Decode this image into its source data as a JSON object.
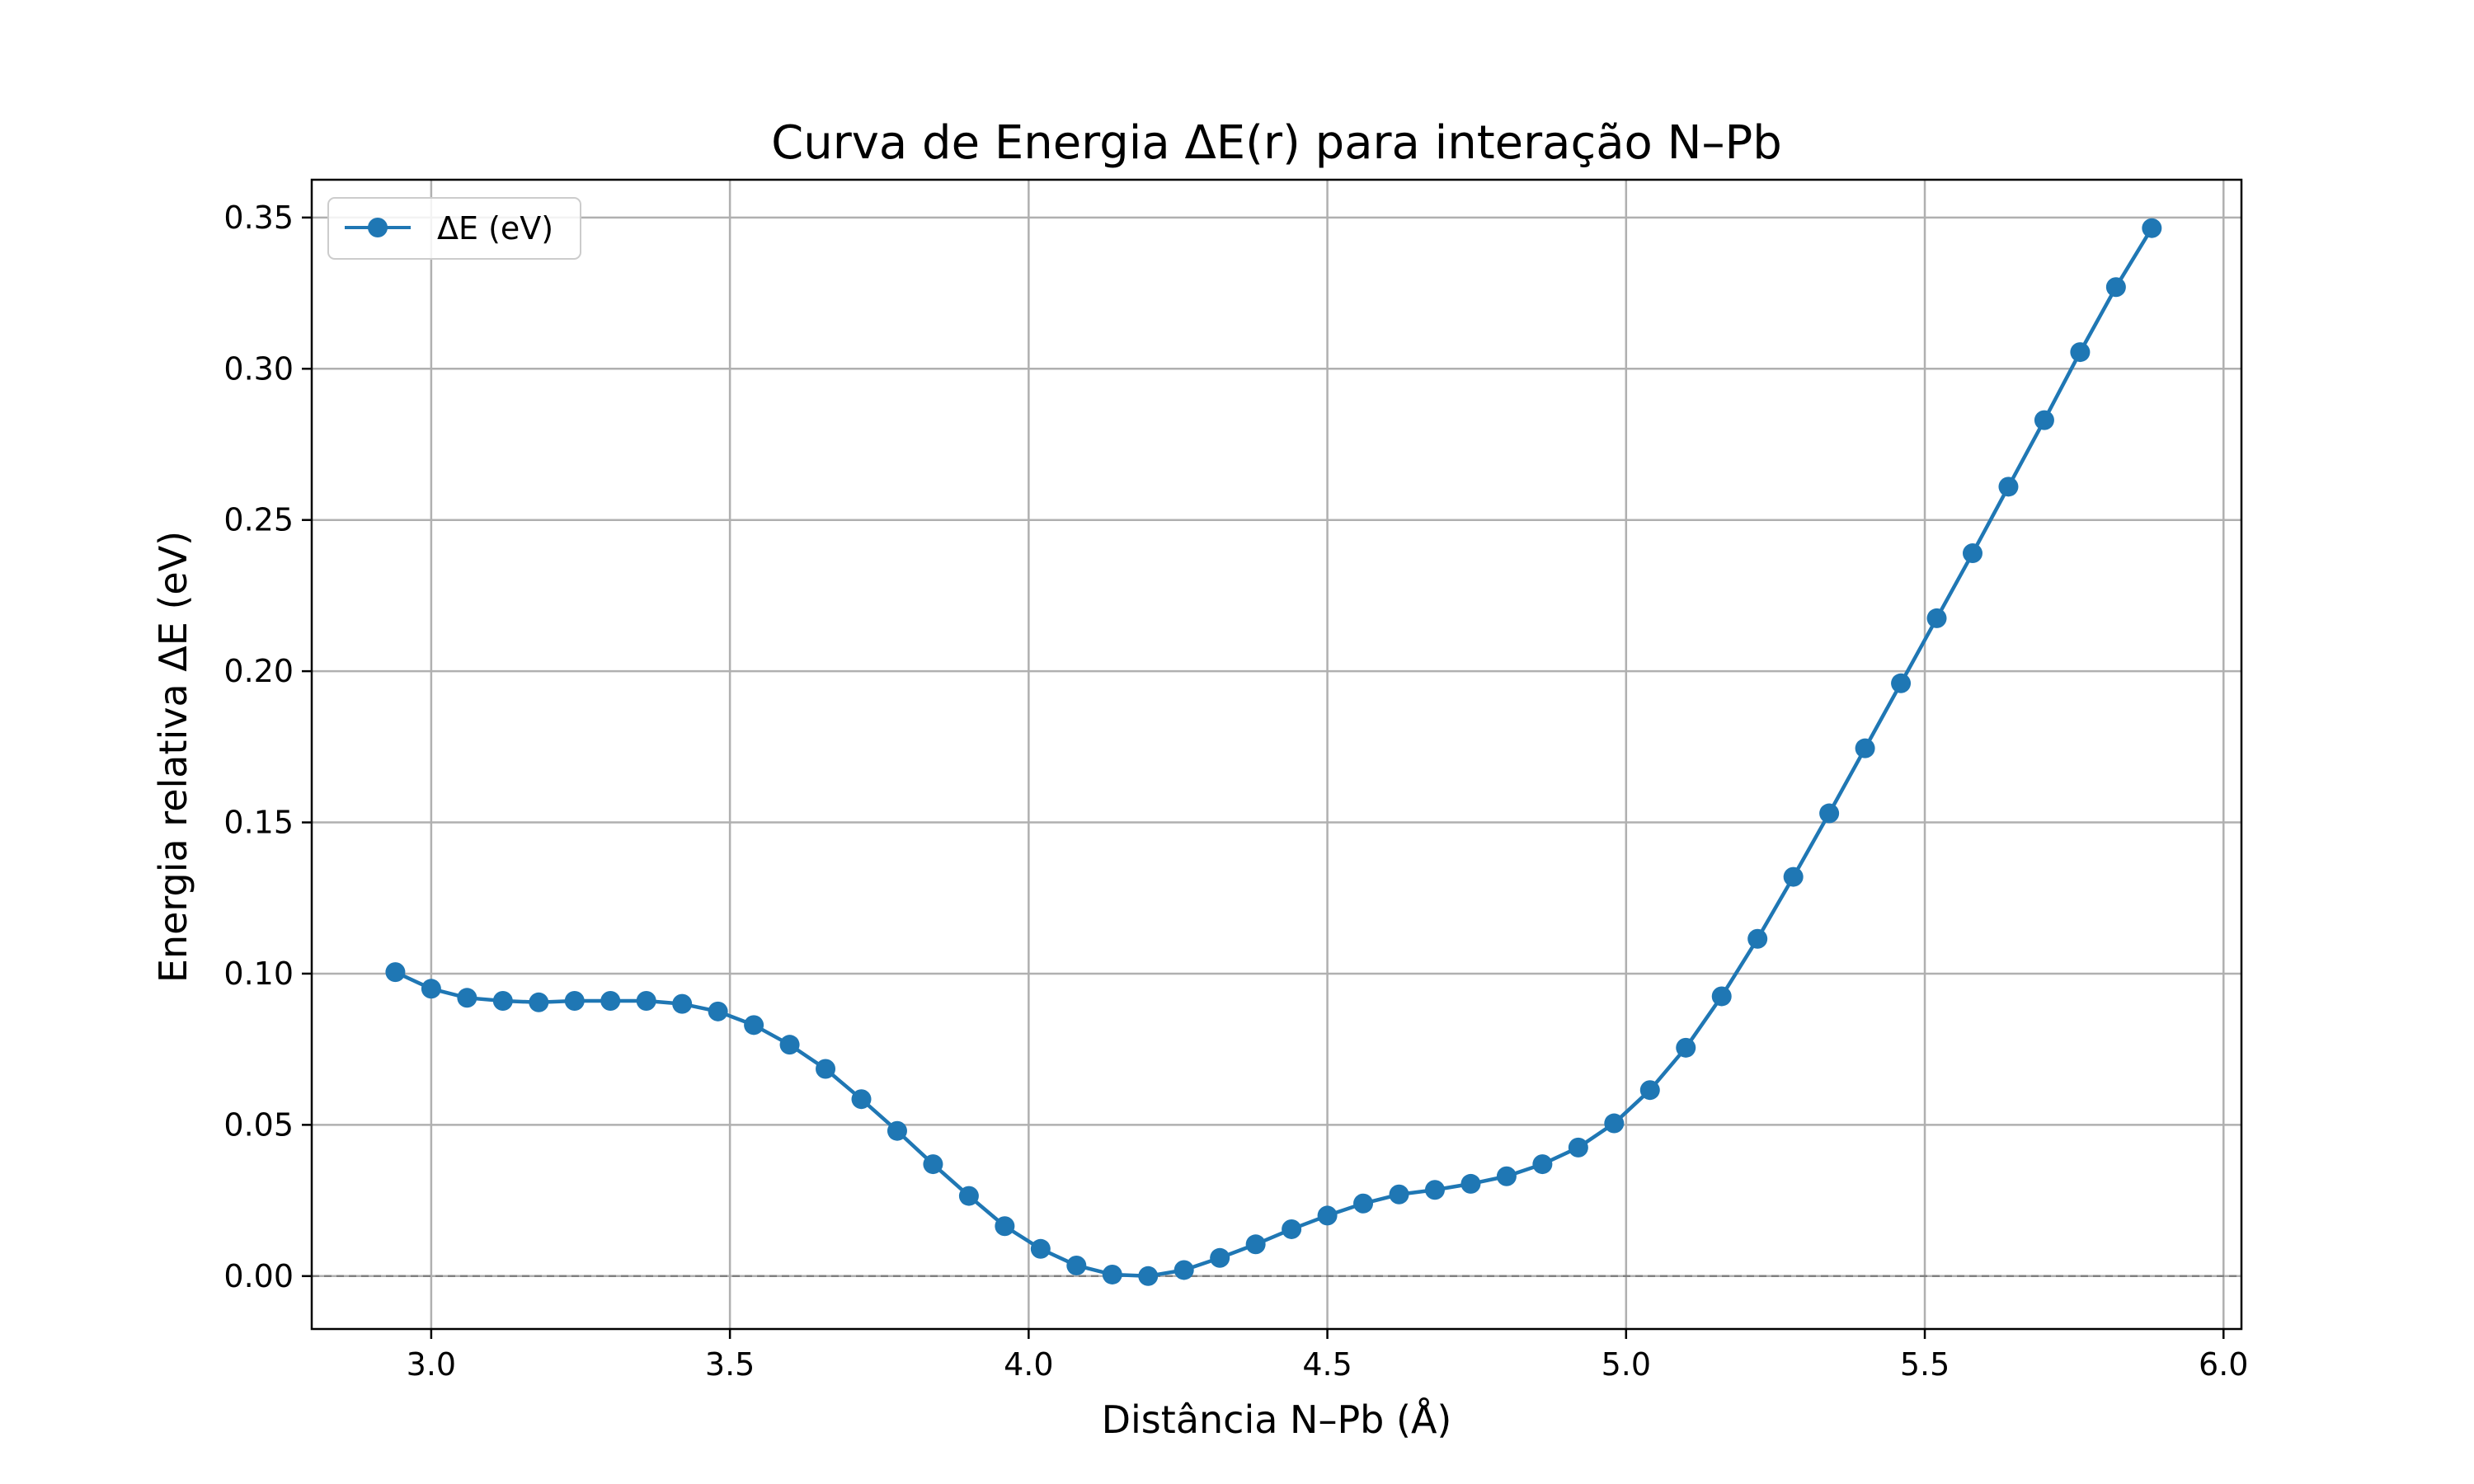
{
  "chart_data": {
    "type": "line",
    "title": "Curva de Energia ΔE(r) para interação N–Pb",
    "xlabel": "Distância N–Pb (Å)",
    "ylabel": "Energia relativa ΔE (eV)",
    "xlim": [
      2.8,
      6.03
    ],
    "ylim": [
      -0.0175,
      0.3625
    ],
    "xticks": [
      3.0,
      3.5,
      4.0,
      4.5,
      5.0,
      5.5,
      6.0
    ],
    "xtick_labels": [
      "3.0",
      "3.5",
      "4.0",
      "4.5",
      "5.0",
      "5.5",
      "6.0"
    ],
    "yticks": [
      0.0,
      0.05,
      0.1,
      0.15,
      0.2,
      0.25,
      0.3,
      0.35
    ],
    "ytick_labels": [
      "0.00",
      "0.05",
      "0.10",
      "0.15",
      "0.20",
      "0.25",
      "0.30",
      "0.35"
    ],
    "grid": true,
    "legend_position": "top-left",
    "reference_line": {
      "y": 0.0,
      "style": "dashed",
      "color": "#808080"
    },
    "series": [
      {
        "name": "ΔE (eV)",
        "color": "#1f77b4",
        "marker": "circle",
        "x": [
          2.94,
          3.0,
          3.06,
          3.12,
          3.18,
          3.24,
          3.3,
          3.36,
          3.42,
          3.48,
          3.54,
          3.6,
          3.66,
          3.72,
          3.78,
          3.84,
          3.9,
          3.96,
          4.02,
          4.08,
          4.14,
          4.2,
          4.26,
          4.32,
          4.38,
          4.44,
          4.5,
          4.56,
          4.62,
          4.68,
          4.74,
          4.8,
          4.86,
          4.92,
          4.98,
          5.04,
          5.1,
          5.16,
          5.22,
          5.28,
          5.34,
          5.4,
          5.46,
          5.52,
          5.58,
          5.64,
          5.7,
          5.76,
          5.82,
          5.88
        ],
        "y": [
          0.1005,
          0.095,
          0.092,
          0.091,
          0.0905,
          0.091,
          0.091,
          0.091,
          0.09,
          0.0875,
          0.083,
          0.0765,
          0.0685,
          0.0585,
          0.048,
          0.037,
          0.0265,
          0.0165,
          0.009,
          0.0035,
          0.0005,
          0.0,
          0.002,
          0.006,
          0.0105,
          0.0155,
          0.02,
          0.024,
          0.027,
          0.0285,
          0.0305,
          0.033,
          0.037,
          0.0425,
          0.0505,
          0.0615,
          0.0755,
          0.0925,
          0.1115,
          0.132,
          0.153,
          0.1745,
          0.196,
          0.2175,
          0.239,
          0.261,
          0.283,
          0.3055,
          0.327,
          0.3465
        ]
      }
    ]
  }
}
